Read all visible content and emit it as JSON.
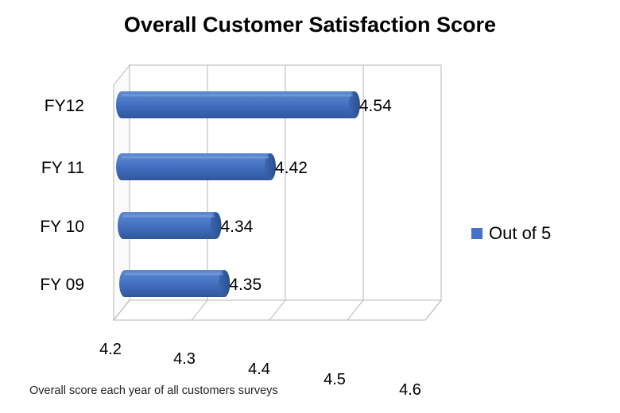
{
  "chart_data": {
    "type": "bar",
    "orientation": "horizontal",
    "title": "Overall Customer Satisfaction Score",
    "caption": "Overall score each year of all customers surveys",
    "categories": [
      "FY12",
      "FY 11",
      "FY 10",
      "FY 09"
    ],
    "series": [
      {
        "name": "Out of 5",
        "values": [
          4.54,
          4.42,
          4.34,
          4.35
        ],
        "color": "#4472C4"
      }
    ],
    "data_labels": [
      "4.54",
      "4.42",
      "4.34",
      "4.35"
    ],
    "xlim": [
      4.2,
      4.6
    ],
    "x_ticks": [
      "4.2",
      "4.3",
      "4.4",
      "4.5",
      "4.6"
    ],
    "grid": true,
    "legend_position": "right",
    "style": "3d-cylinder"
  }
}
